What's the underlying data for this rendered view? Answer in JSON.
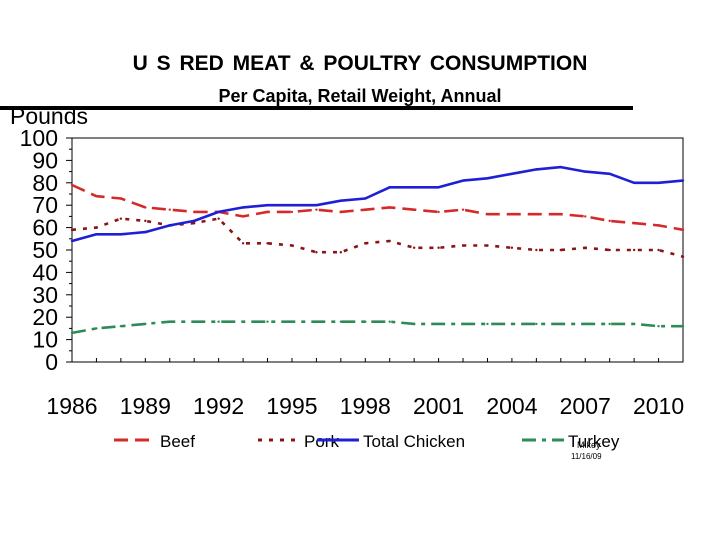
{
  "slide": {
    "title": "U S  RED  MEAT  &  POULTRY  CONSUMPTION",
    "subtitle": "Per Capita, Retail Weight, Annual",
    "footnote_name": "Mikey",
    "footnote_date": "11/16/09"
  },
  "colors": {
    "beef": "#d42a2a",
    "pork": "#8b1414",
    "chicken": "#1f1fd6",
    "turkey": "#2e8b57"
  },
  "chart_data": {
    "type": "line",
    "title": "U S  RED  MEAT  &  POULTRY  CONSUMPTION",
    "subtitle": "Per Capita, Retail Weight, Annual",
    "ylabel": "Pounds",
    "xlabel": "",
    "ylim": [
      0,
      100
    ],
    "yticks": [
      0,
      10,
      20,
      30,
      40,
      50,
      60,
      70,
      80,
      90,
      100
    ],
    "xlim": [
      1986,
      2011
    ],
    "xtick_labels": [
      "1986",
      "1989",
      "1992",
      "1995",
      "1998",
      "2001",
      "2004",
      "2007",
      "2010"
    ],
    "x": [
      1986,
      1987,
      1988,
      1989,
      1990,
      1991,
      1992,
      1993,
      1994,
      1995,
      1996,
      1997,
      1998,
      1999,
      2000,
      2001,
      2002,
      2003,
      2004,
      2005,
      2006,
      2007,
      2008,
      2009,
      2010,
      2011
    ],
    "legend_position": "bottom",
    "series": [
      {
        "name": "Beef",
        "style": "dashed",
        "color_key": "beef",
        "values": [
          79,
          74,
          73,
          69,
          68,
          67,
          67,
          65,
          67,
          67,
          68,
          67,
          68,
          69,
          68,
          67,
          68,
          66,
          66,
          66,
          66,
          65,
          63,
          62,
          61,
          59
        ]
      },
      {
        "name": "Pork",
        "style": "dotted",
        "color_key": "pork",
        "values": [
          59,
          60,
          64,
          63,
          61,
          62,
          64,
          53,
          53,
          52,
          49,
          49,
          53,
          54,
          51,
          51,
          52,
          52,
          51,
          50,
          50,
          51,
          50,
          50,
          50,
          47
        ]
      },
      {
        "name": "Total Chicken",
        "style": "solid",
        "color_key": "chicken",
        "values": [
          54,
          57,
          57,
          58,
          61,
          63,
          67,
          69,
          70,
          70,
          70,
          72,
          73,
          78,
          78,
          78,
          81,
          82,
          84,
          86,
          87,
          85,
          84,
          80,
          80,
          81
        ]
      },
      {
        "name": "Turkey",
        "style": "dashdot",
        "color_key": "turkey",
        "values": [
          13,
          15,
          16,
          17,
          18,
          18,
          18,
          18,
          18,
          18,
          18,
          18,
          18,
          18,
          17,
          17,
          17,
          17,
          17,
          17,
          17,
          17,
          17,
          17,
          16,
          16
        ]
      }
    ]
  }
}
